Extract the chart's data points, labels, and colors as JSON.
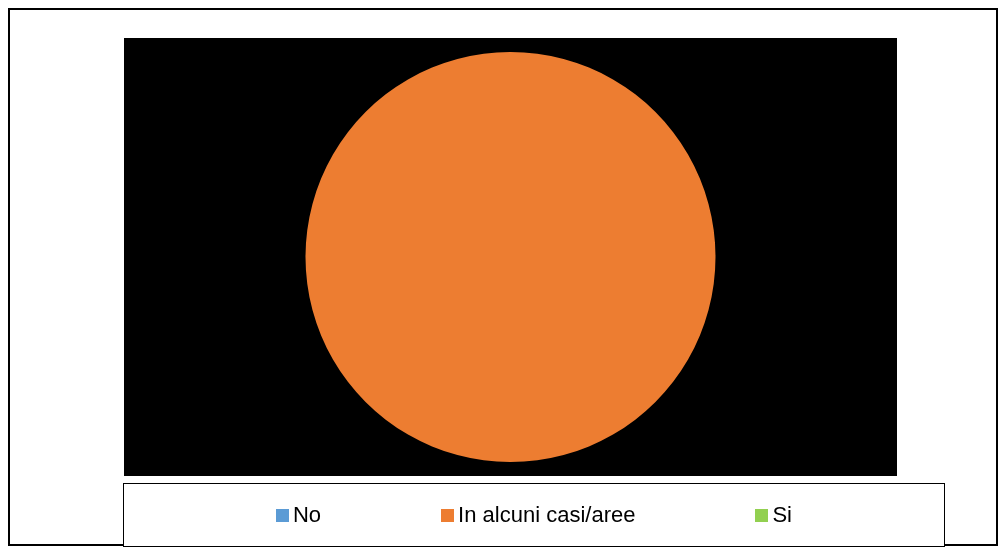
{
  "chart_data": {
    "type": "pie",
    "categories": [
      "No",
      "In alcuni casi/aree",
      "Si"
    ],
    "values": [
      0,
      100,
      0
    ],
    "colors": [
      "#5b9bd5",
      "#ed7d31",
      "#92d050"
    ],
    "legend": "bottom"
  }
}
